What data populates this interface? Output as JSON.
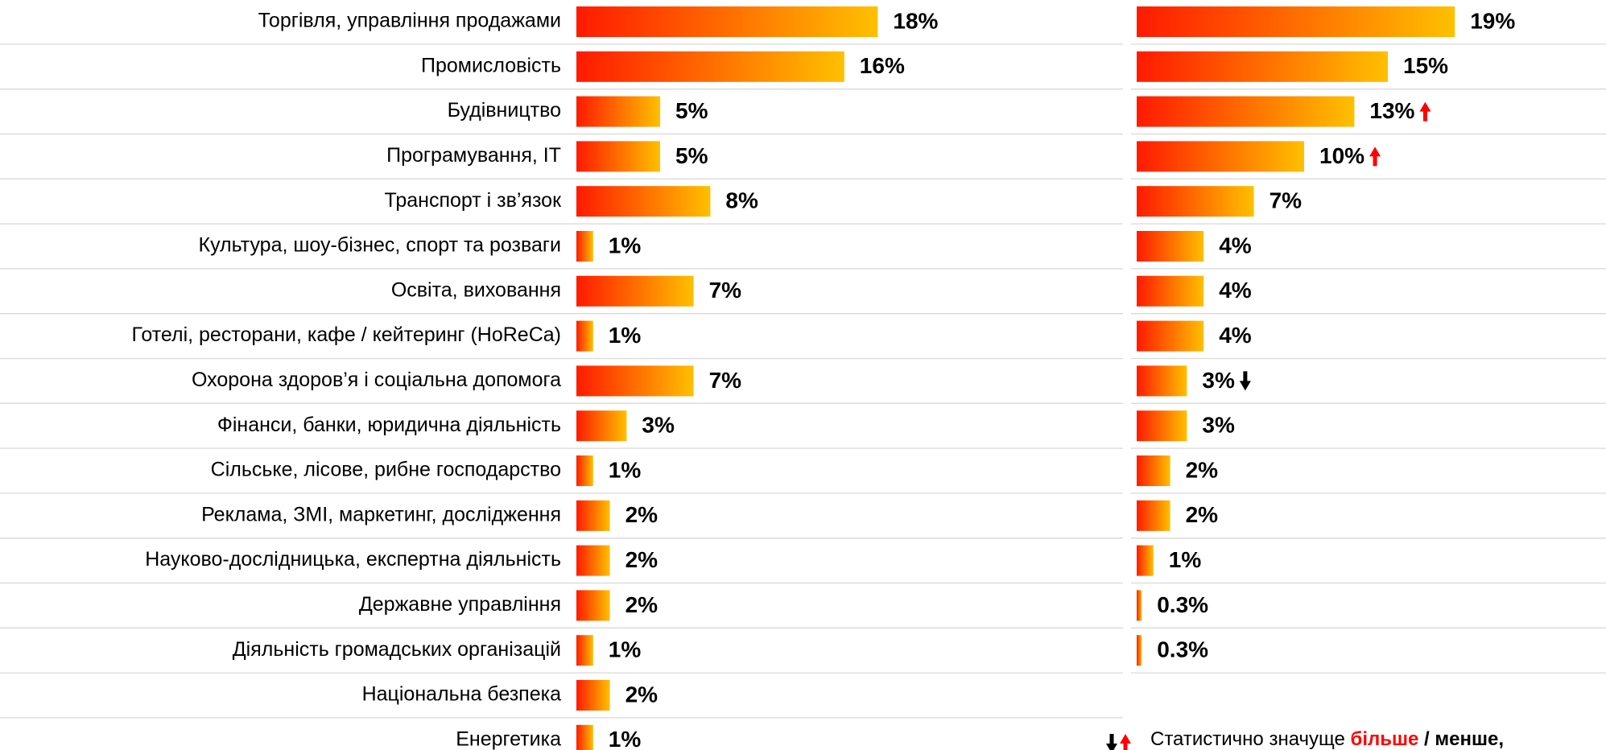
{
  "chart_data": {
    "type": "bar",
    "orientation": "horizontal",
    "categories": [
      "Торгівля, управління продажами",
      "Промисловість",
      "Будівництво",
      "Програмування, IT",
      "Транспорт і зв’язок",
      "Культура, шоу-бізнес, спорт та розваги",
      "Освіта, виховання",
      "Готелі, ресторани, кафе / кейтеринг (HoReCa)",
      "Охорона здоров’я і соціальна допомога",
      "Фінанси, банки, юридична діяльність",
      "Сільське, лісове, рибне господарство",
      "Реклама, ЗМІ, маркетинг, дослідження",
      "Науково-дослідницька, експертна діяльність",
      "Державне управління",
      "Діяльність громадських організацій",
      "Національна безпека",
      "Енергетика"
    ],
    "gradient": [
      "#ff1a00",
      "#ffc000"
    ],
    "series": [
      {
        "values": [
          18,
          16,
          5,
          5,
          8,
          1,
          7,
          1,
          7,
          3,
          1,
          2,
          2,
          2,
          1,
          2,
          1
        ],
        "value_labels": [
          "18%",
          "16%",
          "5%",
          "5%",
          "8%",
          "1%",
          "7%",
          "1%",
          "7%",
          "3%",
          "1%",
          "2%",
          "2%",
          "2%",
          "1%",
          "2%",
          "1%"
        ]
      },
      {
        "values": [
          19,
          15,
          13,
          10,
          7,
          4,
          4,
          4,
          3,
          3,
          2,
          2,
          1,
          0.3,
          0.3,
          null,
          null
        ],
        "value_labels": [
          "19%",
          "15%",
          "13%",
          "10%",
          "7%",
          "4%",
          "4%",
          "4%",
          "3%",
          "3%",
          "2%",
          "2%",
          "1%",
          "0.3%",
          "0.3%",
          null,
          null
        ],
        "significance": [
          null,
          null,
          "up",
          "up",
          null,
          null,
          null,
          null,
          "down",
          null,
          null,
          null,
          null,
          null,
          null,
          null,
          null
        ]
      }
    ],
    "legend": {
      "text": "Статистично значуще",
      "more": "більше",
      "sep": " / ",
      "less": "менше,",
      "more_color": "#ff0000",
      "less_color": "#000000"
    }
  }
}
